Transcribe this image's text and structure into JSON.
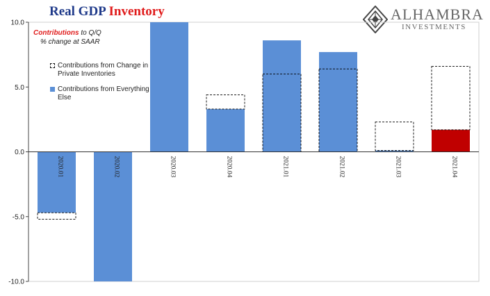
{
  "title": {
    "part1": "Real GDP",
    "part2": "Inventory"
  },
  "logo": {
    "name": "ALHAMBRA",
    "sub": "INVESTMENTS"
  },
  "note": {
    "label": "Contributions",
    "text1": "to Q/Q",
    "text2": "% change at SAAR"
  },
  "legend": [
    {
      "label": "Contributions from Change in Private Inventories",
      "style": "dashed"
    },
    {
      "label": "Contributions from Everything Else",
      "style": "blue"
    }
  ],
  "chart_data": {
    "type": "bar",
    "categories": [
      "2020.01",
      "2020.02",
      "2020.03",
      "2020.04",
      "2021.01",
      "2021.02",
      "2021.03",
      "2021.04"
    ],
    "series": [
      {
        "name": "Contributions from Everything Else",
        "values": [
          -4.7,
          -10.0,
          10.0,
          3.3,
          8.6,
          7.7,
          0.1,
          1.7
        ],
        "color": "#5b8fd6",
        "highlight": {
          "index": 7,
          "color": "#c00000"
        }
      },
      {
        "name": "Contributions from Change in Private Inventories",
        "values": [
          -0.5,
          0.0,
          0.0,
          1.1,
          -2.6,
          -1.3,
          2.2,
          4.9
        ],
        "style": "dashed-outline"
      }
    ],
    "yticks": [
      "10.0",
      "5.0",
      "0.0",
      "-5.0",
      "-10.0"
    ],
    "ylim": [
      -10,
      10
    ],
    "grid": false,
    "legend_position": "top-left"
  }
}
